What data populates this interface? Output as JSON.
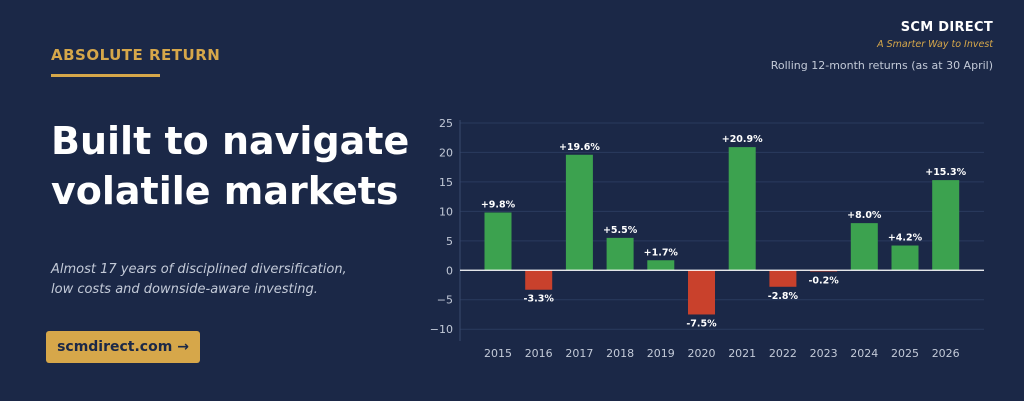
{
  "eyebrow": "ABSOLUTE RETURN",
  "headline": {
    "line1": "Built to navigate",
    "line2": "volatile markets"
  },
  "subtitle": {
    "line1": "Almost 17 years of disciplined diversification,",
    "line2": "low costs and downside-aware investing."
  },
  "cta": {
    "label": "scmdirect.com →"
  },
  "brand": {
    "name": "SCM DIRECT",
    "tagline": "A Smarter Way to Invest"
  },
  "chart_note": "Rolling 12-month returns (as at 30 April)",
  "colors": {
    "background": "#1b2847",
    "accent": "#d6a74a",
    "positive": "#3ca24f",
    "negative": "#c9412c"
  },
  "chart_data": {
    "type": "bar",
    "title": "",
    "xlabel": "",
    "ylabel": "",
    "categories": [
      "2015",
      "2016",
      "2017",
      "2018",
      "2019",
      "2020",
      "2021",
      "2022",
      "2023",
      "2024",
      "2025",
      "2026"
    ],
    "values": [
      9.8,
      -3.3,
      19.6,
      5.5,
      1.7,
      -7.5,
      20.9,
      -2.8,
      -0.2,
      8.0,
      4.2,
      15.3
    ],
    "data_labels": [
      "+9.8%",
      "-3.3%",
      "+19.6%",
      "+5.5%",
      "+1.7%",
      "-7.5%",
      "+20.9%",
      "-2.8%",
      "-0.2%",
      "+8.0%",
      "+4.2%",
      "+15.3%"
    ],
    "yticks": [
      -10,
      -5,
      0,
      5,
      10,
      15,
      20,
      25
    ],
    "ytick_labels": [
      "−10",
      "−5",
      "0",
      "5",
      "10",
      "15",
      "20",
      "25"
    ],
    "ylim": [
      -12,
      25.5
    ],
    "grid": true,
    "legend": "none"
  }
}
